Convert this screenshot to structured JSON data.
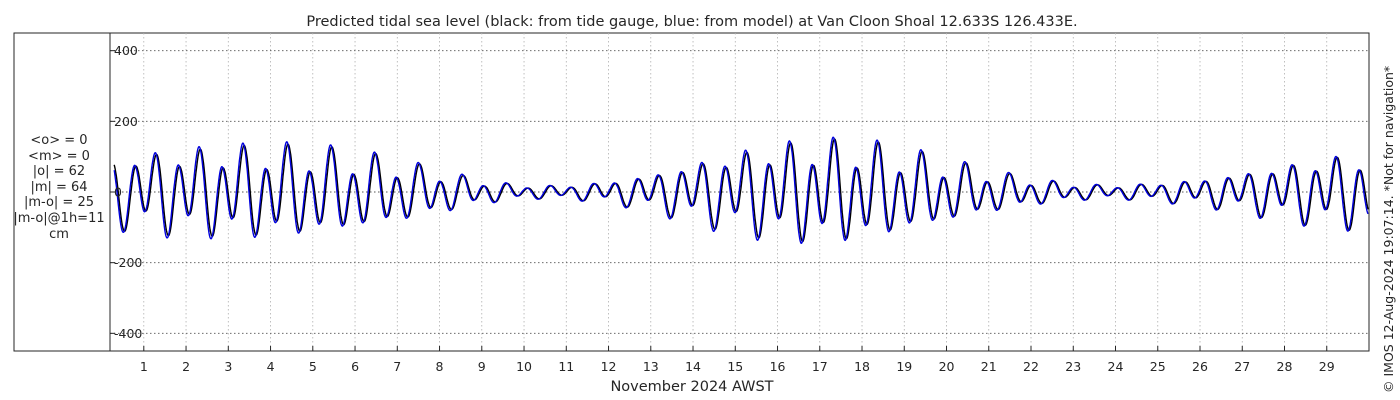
{
  "chart_data": {
    "type": "line",
    "title": "Predicted tidal sea level (black: from tide gauge, blue: from model) at Van Cloon Shoal 12.633S 126.433E.",
    "xlabel": "November 2024 AWST",
    "ylabel": "",
    "x_ticks": [
      "1",
      "2",
      "3",
      "4",
      "5",
      "6",
      "7",
      "8",
      "9",
      "10",
      "11",
      "12",
      "13",
      "14",
      "15",
      "16",
      "17",
      "18",
      "19",
      "20",
      "21",
      "22",
      "23",
      "24",
      "25",
      "26",
      "27",
      "28",
      "29"
    ],
    "xlim": [
      0.2,
      30.0
    ],
    "y_ticks": [
      400,
      200,
      0,
      -200,
      -400
    ],
    "y_tick_labels": [
      "400",
      "200",
      "0",
      "-200",
      "-400"
    ],
    "ylim": [
      -450,
      450
    ],
    "grid": true,
    "series": [
      {
        "name": "from tide gauge",
        "color": "#000000",
        "envelope_day": [
          0.3,
          1,
          2,
          3,
          4,
          5,
          6,
          7,
          8,
          9,
          10,
          11,
          12,
          13,
          14,
          15,
          16,
          17,
          18,
          19,
          20,
          21,
          22,
          23,
          24,
          25,
          26,
          27,
          28,
          29,
          30
        ],
        "envelope_amp": [
          105,
          120,
          130,
          135,
          138,
          132,
          118,
          95,
          65,
          35,
          20,
          20,
          32,
          55,
          90,
          120,
          145,
          155,
          150,
          125,
          95,
          65,
          40,
          25,
          20,
          28,
          40,
          60,
          85,
          105,
          120
        ],
        "phase": 0.0
      },
      {
        "name": "from model",
        "color": "#0000dd",
        "envelope_day": [
          0.3,
          1,
          2,
          3,
          4,
          5,
          6,
          7,
          8,
          9,
          10,
          11,
          12,
          13,
          14,
          15,
          16,
          17,
          18,
          19,
          20,
          21,
          22,
          23,
          24,
          25,
          26,
          27,
          28,
          29,
          30
        ],
        "envelope_amp": [
          108,
          125,
          138,
          142,
          145,
          138,
          122,
          98,
          68,
          37,
          21,
          21,
          34,
          58,
          95,
          128,
          152,
          160,
          155,
          130,
          98,
          67,
          42,
          26,
          21,
          29,
          42,
          63,
          88,
          108,
          123
        ],
        "phase": 0.03
      }
    ],
    "stats": [
      "<o> = 0",
      "<m> = 0",
      "|o| = 62",
      "|m| = 64",
      "|m-o| = 25",
      "|m-o|@1h=11",
      "cm"
    ]
  },
  "credit": "© IMOS 12-Aug-2024 19:07:14. *Not for navigation*",
  "colors": {
    "gauge": "#000000",
    "model": "#0000dd",
    "grid": "#b0b0b0",
    "axis": "#262626"
  }
}
